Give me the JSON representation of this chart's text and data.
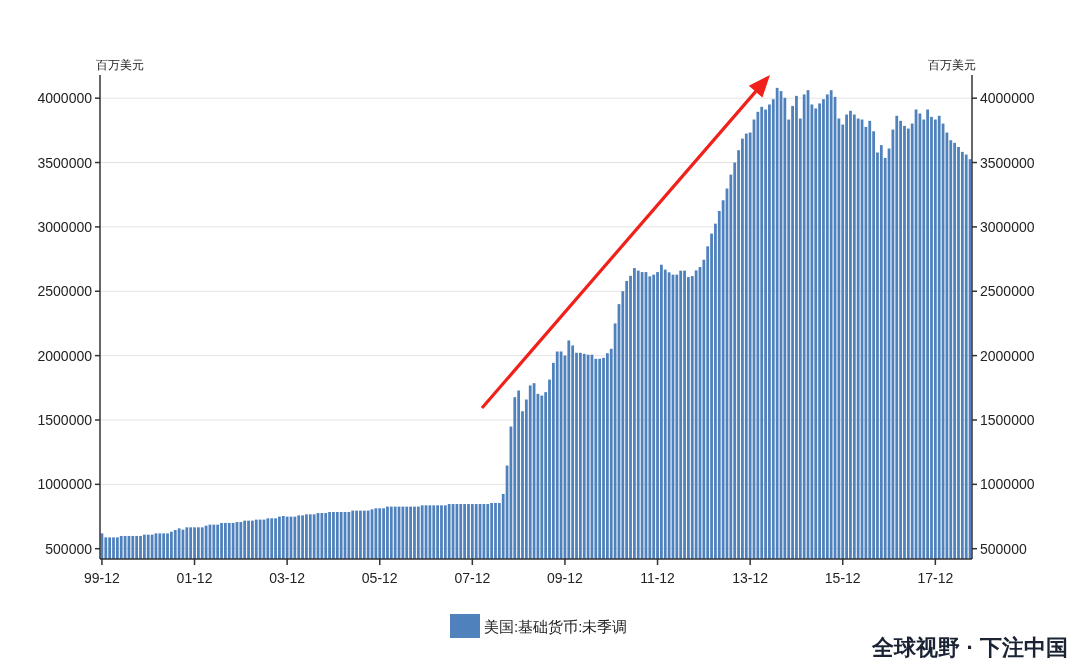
{
  "chart_data": {
    "type": "bar",
    "ylabel": "百万美元",
    "y2label": "百万美元",
    "categories": [
      "99-12",
      null,
      null,
      null,
      null,
      null,
      null,
      null,
      null,
      null,
      null,
      null,
      null,
      null,
      null,
      null,
      null,
      null,
      null,
      null,
      null,
      null,
      null,
      null,
      "01-12",
      null,
      null,
      null,
      null,
      null,
      null,
      null,
      null,
      null,
      null,
      null,
      null,
      null,
      null,
      null,
      null,
      null,
      null,
      null,
      null,
      null,
      null,
      null,
      "03-12",
      null,
      null,
      null,
      null,
      null,
      null,
      null,
      null,
      null,
      null,
      null,
      null,
      null,
      null,
      null,
      null,
      null,
      null,
      null,
      null,
      null,
      null,
      null,
      "05-12",
      null,
      null,
      null,
      null,
      null,
      null,
      null,
      null,
      null,
      null,
      null,
      null,
      null,
      null,
      null,
      null,
      null,
      null,
      null,
      null,
      null,
      null,
      null,
      "07-12",
      null,
      null,
      null,
      null,
      null,
      null,
      null,
      null,
      null,
      null,
      null,
      null,
      null,
      null,
      null,
      null,
      null,
      null,
      null,
      null,
      null,
      null,
      null,
      "09-12",
      null,
      null,
      null,
      null,
      null,
      null,
      null,
      null,
      null,
      null,
      null,
      null,
      null,
      null,
      null,
      null,
      null,
      null,
      null,
      null,
      null,
      null,
      null,
      "11-12",
      null,
      null,
      null,
      null,
      null,
      null,
      null,
      null,
      null,
      null,
      null,
      null,
      null,
      null,
      null,
      null,
      null,
      null,
      null,
      null,
      null,
      null,
      null,
      "13-12",
      null,
      null,
      null,
      null,
      null,
      null,
      null,
      null,
      null,
      null,
      null,
      null,
      null,
      null,
      null,
      null,
      null,
      null,
      null,
      null,
      null,
      null,
      null,
      "15-12",
      null,
      null,
      null,
      null,
      null,
      null,
      null,
      null,
      null,
      null,
      null,
      null,
      null,
      null,
      null,
      null,
      null,
      null,
      null,
      null,
      null,
      null,
      null,
      "17-12",
      null,
      null,
      null,
      null,
      null,
      null,
      null,
      null,
      null
    ],
    "series": [
      {
        "name": "美国:基础货币:未季调",
        "color": "#4f81bd",
        "values": [
          619000,
          588000,
          588000,
          588000,
          588000,
          599000,
          599000,
          599000,
          599000,
          599000,
          599000,
          609000,
          609000,
          609000,
          619000,
          619000,
          619000,
          619000,
          632000,
          645000,
          658000,
          648000,
          666000,
          666000,
          666000,
          666000,
          666000,
          679000,
          687000,
          687000,
          687000,
          700000,
          700000,
          700000,
          700000,
          707000,
          707000,
          718000,
          718000,
          718000,
          726000,
          726000,
          726000,
          736000,
          736000,
          736000,
          749000,
          754000,
          749000,
          749000,
          749000,
          759000,
          759000,
          767000,
          767000,
          767000,
          777000,
          777000,
          777000,
          785000,
          785000,
          785000,
          785000,
          785000,
          785000,
          796000,
          796000,
          796000,
          796000,
          796000,
          806000,
          814000,
          814000,
          814000,
          827000,
          827000,
          827000,
          827000,
          827000,
          827000,
          827000,
          827000,
          827000,
          837000,
          837000,
          837000,
          837000,
          837000,
          837000,
          837000,
          847000,
          847000,
          847000,
          847000,
          847000,
          847000,
          847000,
          847000,
          847000,
          847000,
          847000,
          855000,
          855000,
          855000,
          925000,
          1146000,
          1449000,
          1677000,
          1729000,
          1568000,
          1659000,
          1768000,
          1786000,
          1703000,
          1690000,
          1716000,
          1814000,
          1944000,
          2032000,
          2032000,
          2001000,
          2118000,
          2079000,
          2022000,
          2022000,
          2014000,
          2007000,
          2007000,
          1975000,
          1975000,
          1983000,
          2019000,
          2053000,
          2250000,
          2400000,
          2500000,
          2580000,
          2620000,
          2680000,
          2660000,
          2649000,
          2649000,
          2616000,
          2629000,
          2649000,
          2706000,
          2668000,
          2647000,
          2629000,
          2629000,
          2660000,
          2660000,
          2610000,
          2618000,
          2662000,
          2688000,
          2745000,
          2849000,
          2948000,
          3025000,
          3124000,
          3207000,
          3298000,
          3406000,
          3500000,
          3596000,
          3686000,
          3725000,
          3733000,
          3834000,
          3894000,
          3933000,
          3912000,
          3951000,
          3992000,
          4080000,
          4055000,
          4003000,
          3834000,
          3940000,
          4018000,
          3842000,
          4029000,
          4062000,
          3951000,
          3920000,
          3959000,
          3992000,
          4029000,
          4062000,
          4010000,
          3842000,
          3795000,
          3873000,
          3902000,
          3873000,
          3842000,
          3834000,
          3777000,
          3824000,
          3743000,
          3578000,
          3635000,
          3536000,
          3609000,
          3756000,
          3863000,
          3824000,
          3785000,
          3764000,
          3803000,
          3912000,
          3881000,
          3834000,
          3912000,
          3855000,
          3834000,
          3863000,
          3803000,
          3733000,
          3673000,
          3653000,
          3621000,
          3583000,
          3562000,
          3526000
        ]
      }
    ],
    "ylim": [
      420000,
      4180000
    ],
    "yticks": [
      500000,
      1000000,
      1500000,
      2000000,
      2500000,
      3000000,
      3500000,
      4000000
    ],
    "y2lim": [
      420000,
      4180000
    ],
    "y2ticks": [
      500000,
      1000000,
      1500000,
      2000000,
      2500000,
      3000000,
      3500000,
      4000000
    ],
    "grid": "y",
    "legend": "bottom",
    "annotations": [
      "全球视野 · 下注中国"
    ]
  }
}
